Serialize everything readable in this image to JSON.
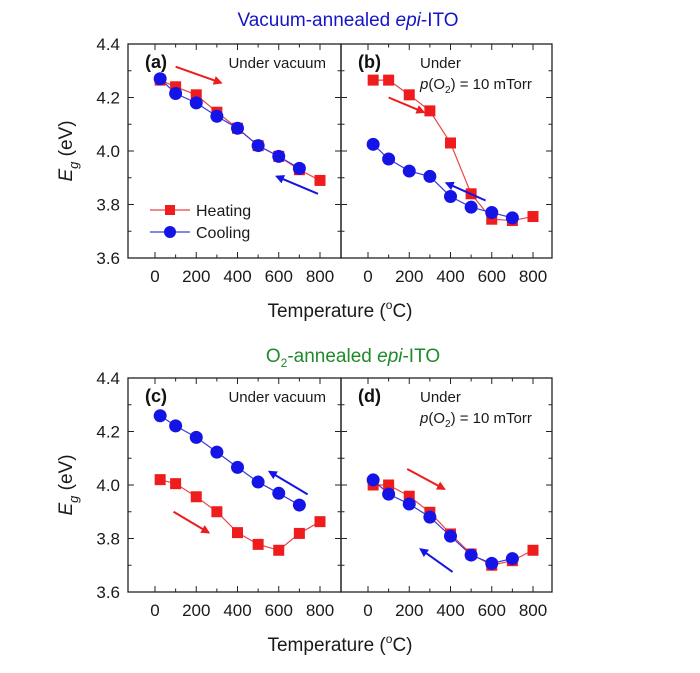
{
  "chart_data": [
    {
      "type": "line",
      "panel_label": "(a)",
      "group_title": "Vacuum-annealed epi-ITO",
      "condition": [
        "Under vacuum"
      ],
      "xlabel": "Temperature (°C)",
      "ylabel": "E_g (eV)",
      "xlim": [
        -100,
        900
      ],
      "ylim": [
        3.6,
        4.4
      ],
      "xticks": [
        0,
        200,
        400,
        600,
        800
      ],
      "yticks": [
        3.6,
        3.8,
        4.0,
        4.2,
        4.4
      ],
      "legend": [
        "Heating",
        "Cooling"
      ],
      "legend_position": "bottom-left",
      "series": [
        {
          "name": "Heating",
          "x": [
            25,
            100,
            200,
            300,
            400,
            500,
            600,
            700,
            800
          ],
          "y": [
            4.265,
            4.24,
            4.21,
            4.145,
            4.085,
            4.02,
            3.98,
            3.93,
            3.89
          ]
        },
        {
          "name": "Cooling",
          "x": [
            25,
            100,
            200,
            300,
            400,
            500,
            600,
            700
          ],
          "y": [
            4.27,
            4.215,
            4.18,
            4.13,
            4.085,
            4.02,
            3.98,
            3.935
          ]
        }
      ],
      "arrows": [
        {
          "series": "Heating",
          "from": [
            100,
            4.315
          ],
          "to": [
            320,
            4.255
          ]
        },
        {
          "series": "Cooling",
          "from": [
            790,
            3.84
          ],
          "to": [
            590,
            3.905
          ]
        }
      ]
    },
    {
      "type": "line",
      "panel_label": "(b)",
      "group_title": "Vacuum-annealed epi-ITO",
      "condition": [
        "Under",
        "p(O2) = 10 mTorr"
      ],
      "xlabel": "Temperature (°C)",
      "ylabel": "E_g (eV)",
      "xlim": [
        -100,
        900
      ],
      "ylim": [
        3.6,
        4.4
      ],
      "xticks": [
        0,
        200,
        400,
        600,
        800
      ],
      "yticks": [
        3.6,
        3.8,
        4.0,
        4.2,
        4.4
      ],
      "series": [
        {
          "name": "Heating",
          "x": [
            25,
            100,
            200,
            300,
            400,
            500,
            600,
            700,
            800
          ],
          "y": [
            4.265,
            4.265,
            4.21,
            4.15,
            4.03,
            3.84,
            3.745,
            3.74,
            3.755
          ]
        },
        {
          "name": "Cooling",
          "x": [
            25,
            100,
            200,
            300,
            400,
            500,
            600,
            700
          ],
          "y": [
            4.025,
            3.97,
            3.925,
            3.905,
            3.83,
            3.79,
            3.77,
            3.75
          ]
        }
      ],
      "arrows": [
        {
          "series": "Heating",
          "from": [
            100,
            4.2
          ],
          "to": [
            270,
            4.145
          ]
        },
        {
          "series": "Cooling",
          "from": [
            570,
            3.815
          ],
          "to": [
            380,
            3.88
          ]
        }
      ]
    },
    {
      "type": "line",
      "panel_label": "(c)",
      "group_title": "O2-annealed epi-ITO",
      "condition": [
        "Under vacuum"
      ],
      "xlabel": "Temperature (°C)",
      "ylabel": "E_g (eV)",
      "xlim": [
        -100,
        900
      ],
      "ylim": [
        3.6,
        4.4
      ],
      "xticks": [
        0,
        200,
        400,
        600,
        800
      ],
      "yticks": [
        3.6,
        3.8,
        4.0,
        4.2,
        4.4
      ],
      "series": [
        {
          "name": "Heating",
          "x": [
            25,
            100,
            200,
            300,
            400,
            500,
            600,
            700,
            800
          ],
          "y": [
            4.02,
            4.005,
            3.956,
            3.9,
            3.822,
            3.778,
            3.756,
            3.819,
            3.863
          ]
        },
        {
          "name": "Cooling",
          "x": [
            25,
            100,
            200,
            300,
            400,
            500,
            600,
            700
          ],
          "y": [
            4.259,
            4.221,
            4.178,
            4.123,
            4.066,
            4.011,
            3.969,
            3.925
          ]
        }
      ],
      "arrows": [
        {
          "series": "Heating",
          "from": [
            90,
            3.9
          ],
          "to": [
            260,
            3.822
          ]
        },
        {
          "series": "Cooling",
          "from": [
            740,
            3.965
          ],
          "to": [
            555,
            4.05
          ]
        }
      ]
    },
    {
      "type": "line",
      "panel_label": "(d)",
      "group_title": "O2-annealed epi-ITO",
      "condition": [
        "Under",
        "p(O2) = 10 mTorr"
      ],
      "xlabel": "Temperature (°C)",
      "ylabel": "E_g (eV)",
      "xlim": [
        -100,
        900
      ],
      "ylim": [
        3.6,
        4.4
      ],
      "xticks": [
        0,
        200,
        400,
        600,
        800
      ],
      "yticks": [
        3.6,
        3.8,
        4.0,
        4.2,
        4.4
      ],
      "series": [
        {
          "name": "Heating",
          "x": [
            25,
            100,
            200,
            300,
            400,
            500,
            600,
            700,
            800
          ],
          "y": [
            4.0,
            4.0,
            3.958,
            3.898,
            3.817,
            3.742,
            3.7,
            3.717,
            3.756
          ]
        },
        {
          "name": "Cooling",
          "x": [
            25,
            100,
            200,
            300,
            400,
            500,
            600,
            700
          ],
          "y": [
            4.019,
            3.966,
            3.929,
            3.88,
            3.809,
            3.738,
            3.707,
            3.725
          ]
        }
      ],
      "arrows": [
        {
          "series": "Heating",
          "from": [
            190,
            4.06
          ],
          "to": [
            370,
            3.985
          ]
        },
        {
          "series": "Cooling",
          "from": [
            410,
            3.675
          ],
          "to": [
            255,
            3.76
          ]
        }
      ]
    }
  ],
  "figure": {
    "title_top": {
      "main": "Vacuum-annealed ",
      "italic": "epi",
      "rest": "-ITO",
      "color": "#1515c8"
    },
    "title_bottom": {
      "pre": "O",
      "sub": "2",
      "main": "-annealed ",
      "italic": "epi",
      "rest": "-ITO",
      "color": "#1f8a2a"
    },
    "ylabel_main": "E",
    "ylabel_sub": "g",
    "ylabel_unit": " (eV)",
    "xlabel_main": "Temperature (",
    "xlabel_sup": "o",
    "xlabel_end": "C)",
    "cond_vacuum": "Under vacuum",
    "cond_under": "Under",
    "cond_p": "p",
    "cond_o": "(O",
    "cond_sub": "2",
    "cond_rest": ") = 10 mTorr",
    "legend_heating": "Heating",
    "legend_cooling": "Cooling",
    "colors": {
      "heating": "#ee1c1c",
      "cooling": "#1414e6",
      "heating_line": "#e84545",
      "cooling_line": "#3a3ad6"
    }
  }
}
